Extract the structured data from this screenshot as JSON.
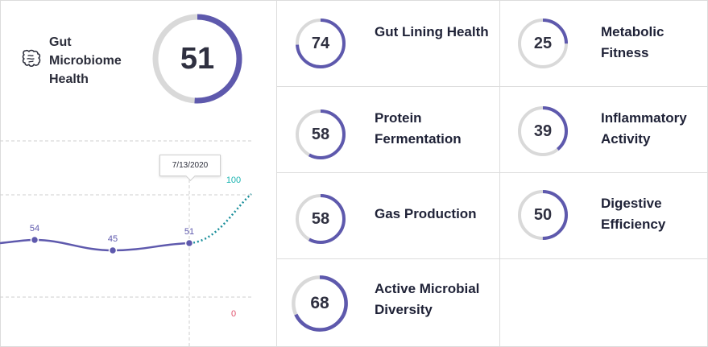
{
  "header": {
    "title": "Gut Microbiome Health",
    "icon": "intestine-icon",
    "score": 51,
    "score_fraction": 0.51
  },
  "chart_data": {
    "type": "line",
    "series": [
      {
        "values": [
          54,
          45,
          51
        ]
      }
    ],
    "value_labels": [
      "54",
      "45",
      "51"
    ],
    "projection": {
      "from": 51,
      "to": 100
    },
    "range_labels": {
      "max": "100",
      "min": "0"
    },
    "tooltip_date": "7/13/2020",
    "grid": true
  },
  "metrics": [
    {
      "label": "Gut Lining Health",
      "value": 74
    },
    {
      "label": "Metabolic Fitness",
      "value": 25
    },
    {
      "label": "Protein Fermentation",
      "value": 58
    },
    {
      "label": "Inflammatory Activity",
      "value": 39
    },
    {
      "label": "Gas Production",
      "value": 58
    },
    {
      "label": "Digestive Efficiency",
      "value": 50
    },
    {
      "label": "Active Microbial Diversity",
      "value": 68
    }
  ],
  "colors": {
    "ring": "#5e59ad",
    "track": "#d9d9d9",
    "series": "#5e59ad",
    "projection": "#1a8f9b",
    "max_label": "#19b3b0",
    "min_label": "#e0506b",
    "text": "#23243a"
  }
}
